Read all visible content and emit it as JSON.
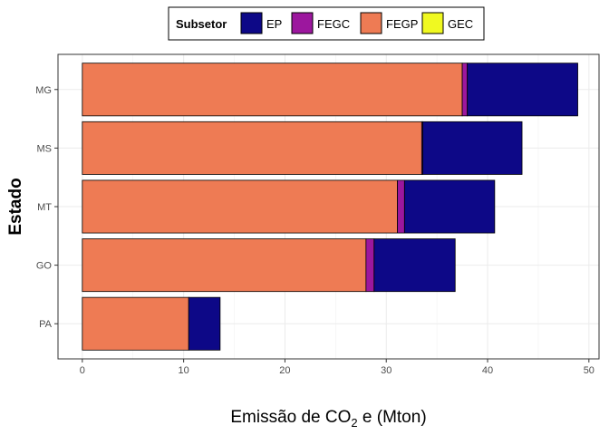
{
  "chart_data": {
    "type": "bar",
    "orientation": "horizontal",
    "stacked": true,
    "categories": [
      "PA",
      "GO",
      "MT",
      "MS",
      "MG"
    ],
    "series": [
      {
        "name": "FEGP",
        "color": "#EE7B54",
        "values": [
          10.5,
          28.0,
          31.1,
          33.5,
          37.5
        ]
      },
      {
        "name": "FEGC",
        "color": "#9C179E",
        "values": [
          0.0,
          0.8,
          0.7,
          0.1,
          0.5
        ]
      },
      {
        "name": "EP",
        "color": "#0D0887",
        "values": [
          3.1,
          8.0,
          8.9,
          9.8,
          10.9
        ]
      },
      {
        "name": "GEC",
        "color": "#F0F921",
        "values": [
          0,
          0,
          0,
          0,
          0
        ]
      }
    ],
    "xlabel": "Emissão de CO",
    "xlabel_sub": "2",
    "xlabel_suffix": " e (Mton)",
    "ylabel": "Estado",
    "xlim": [
      -2.4,
      51.0
    ],
    "xticks": [
      0,
      10,
      20,
      30,
      40,
      50
    ],
    "grid": true,
    "legend": {
      "position": "top",
      "title": "Subsetor",
      "entries": [
        {
          "label": "EP",
          "color": "#0D0887"
        },
        {
          "label": "FEGC",
          "color": "#9C179E"
        },
        {
          "label": "FEGP",
          "color": "#EE7B54"
        },
        {
          "label": "GEC",
          "color": "#F0F921"
        }
      ]
    }
  }
}
